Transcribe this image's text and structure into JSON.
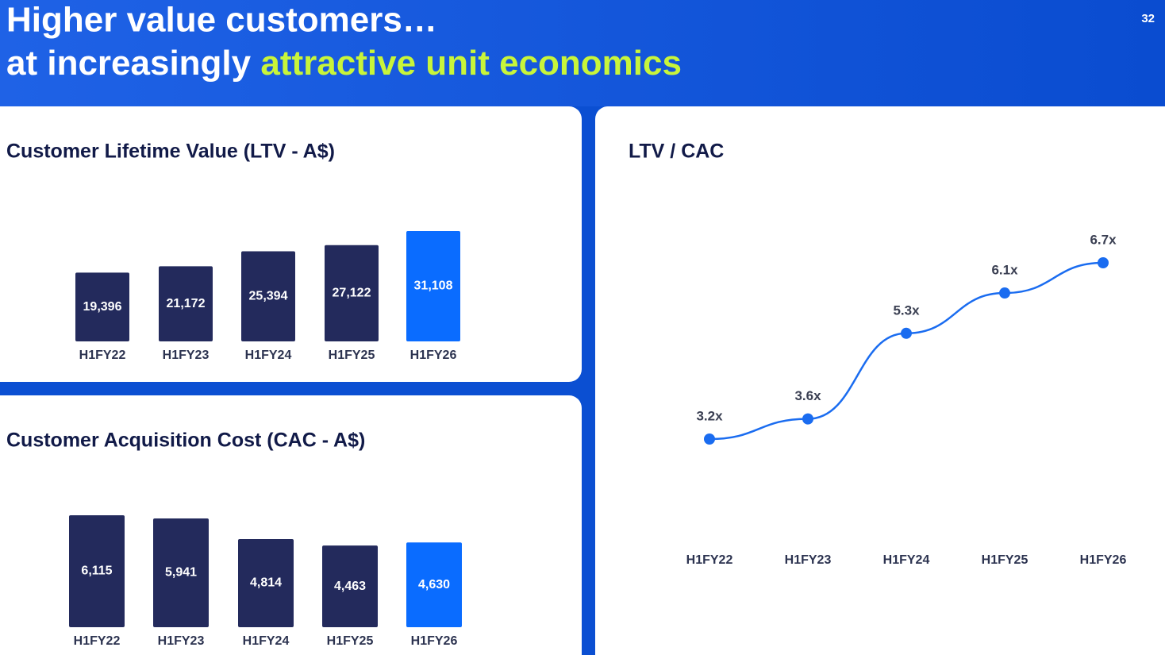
{
  "header": {
    "title_line1": "Higher value customers…",
    "title_line2": "at increasingly",
    "title_highlight": "attractive unit economics",
    "page_number": "32"
  },
  "chart_data": [
    {
      "type": "bar",
      "title": "Customer Lifetime Value (LTV - A$)",
      "categories": [
        "H1FY22",
        "H1FY23",
        "H1FY24",
        "H1FY25",
        "H1FY26"
      ],
      "values": [
        19396,
        21172,
        25394,
        27122,
        31108
      ],
      "value_labels": [
        "19,396",
        "21,172",
        "25,394",
        "27,122",
        "31,108"
      ],
      "colors": [
        "#232a5c",
        "#232a5c",
        "#232a5c",
        "#232a5c",
        "#0a6cff"
      ]
    },
    {
      "type": "bar",
      "title": "Customer Acquisition Cost (CAC - A$)",
      "categories": [
        "H1FY22",
        "H1FY23",
        "H1FY24",
        "H1FY25",
        "H1FY26"
      ],
      "values": [
        6115,
        5941,
        4814,
        4463,
        4630
      ],
      "value_labels": [
        "6,115",
        "5,941",
        "4,814",
        "4,463",
        "4,630"
      ],
      "colors": [
        "#232a5c",
        "#232a5c",
        "#232a5c",
        "#232a5c",
        "#0a6cff"
      ]
    },
    {
      "type": "line",
      "title": "LTV / CAC",
      "categories": [
        "H1FY22",
        "H1FY23",
        "H1FY24",
        "H1FY25",
        "H1FY26"
      ],
      "values": [
        3.2,
        3.6,
        5.3,
        6.1,
        6.7
      ],
      "value_labels": [
        "3.2x",
        "3.6x",
        "5.3x",
        "6.1x",
        "6.7x"
      ],
      "color": "#1a6cf0"
    }
  ]
}
